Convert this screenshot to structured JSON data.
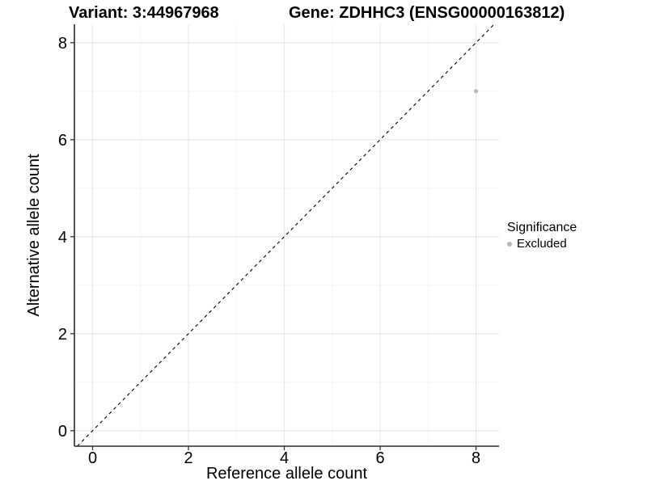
{
  "chart_data": {
    "type": "scatter",
    "titles": {
      "left": "Variant: 3:44967968",
      "right": "Gene: ZDHHC3 (ENSG00000163812)"
    },
    "xlabel": "Reference allele count",
    "ylabel": "Alternative allele count",
    "xlim": [
      -0.38,
      8.48
    ],
    "ylim": [
      -0.32,
      8.38
    ],
    "xticks": [
      0,
      2,
      4,
      6,
      8
    ],
    "yticks": [
      0,
      2,
      4,
      6,
      8
    ],
    "xticks_minor": [
      1,
      3,
      5,
      7
    ],
    "yticks_minor": [
      1,
      3,
      5,
      7
    ],
    "grid": "major+minor",
    "identity_line": {
      "slope": 1,
      "intercept": 0,
      "style": "dashed",
      "color": "#000000"
    },
    "points": [
      {
        "x": 8,
        "y": 7,
        "series": "Excluded"
      }
    ],
    "legend": {
      "title": "Significance",
      "position": "right",
      "items": [
        {
          "label": "Excluded",
          "color": "#b8b8b8"
        }
      ]
    },
    "colors": {
      "point": "#b8b8b8",
      "grid_major": "#e8e8e8",
      "grid_minor": "#f3f3f3",
      "axis_line": "#2b2b2b",
      "tick_mark": "#333333",
      "tick_text": "#000000"
    }
  }
}
